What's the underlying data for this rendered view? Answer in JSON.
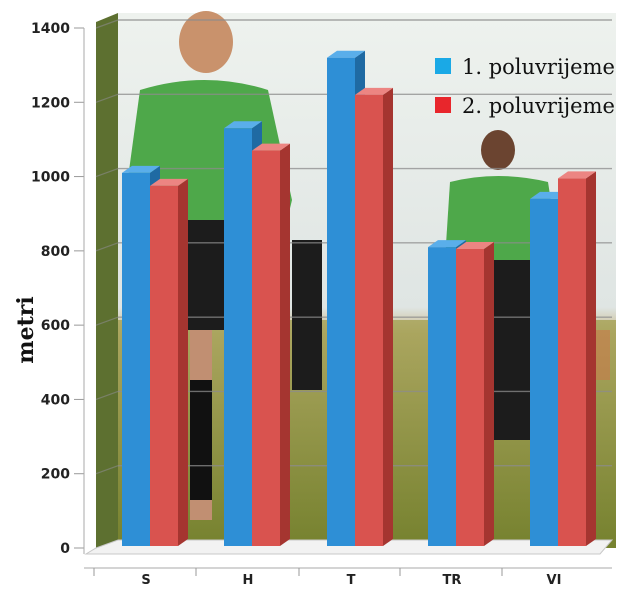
{
  "chart_data": {
    "type": "bar",
    "categories": [
      "S",
      "H",
      "T",
      "TR",
      "VI"
    ],
    "series": [
      {
        "name": "1. poluvrijeme",
        "color": "#2e8fd6",
        "values": [
          1010,
          1130,
          1320,
          810,
          940
        ]
      },
      {
        "name": "2. poluvrijeme",
        "color": "#d9534f",
        "values": [
          975,
          1070,
          1220,
          805,
          995
        ]
      }
    ],
    "yticks": [
      0,
      200,
      400,
      600,
      800,
      1000,
      1200,
      1400
    ],
    "ylim": [
      0,
      1400
    ],
    "xlabel": "",
    "ylabel": "metri",
    "grid": true,
    "legend_position": "top-right",
    "background": "photograph of football referees"
  }
}
